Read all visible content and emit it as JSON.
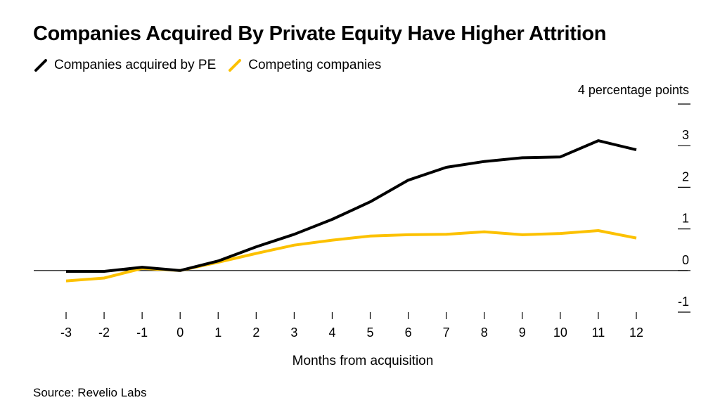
{
  "title": "Companies Acquired By Private Equity Have Higher Attrition",
  "source": "Source: Revelio Labs",
  "colors": {
    "pe": "#000000",
    "competing": "#fcc100",
    "zero_line": "#000000"
  },
  "chart_data": {
    "type": "line",
    "title": "Companies Acquired By Private Equity Have Higher Attrition",
    "xlabel": "Months from acquisition",
    "ylabel": "percentage points",
    "y_unit_label": "4 percentage points",
    "x": [
      -3,
      -2,
      -1,
      0,
      1,
      2,
      3,
      4,
      5,
      6,
      7,
      8,
      9,
      10,
      11,
      12
    ],
    "x_tick_labels": [
      "-3",
      "-2",
      "-1",
      "0",
      "1",
      "2",
      "3",
      "4",
      "5",
      "6",
      "7",
      "8",
      "9",
      "10",
      "11",
      "12"
    ],
    "y_ticks": [
      -1,
      0,
      1,
      2,
      3,
      4
    ],
    "y_tick_labels": [
      "-1",
      "0",
      "1",
      "2",
      "3",
      ""
    ],
    "ylim": [
      -1,
      4
    ],
    "xlim": [
      -3.3,
      12.2
    ],
    "series": [
      {
        "name": "Companies acquired by PE",
        "color": "#000000",
        "values": [
          -0.02,
          -0.02,
          0.08,
          0.0,
          0.23,
          0.57,
          0.87,
          1.23,
          1.65,
          2.17,
          2.48,
          2.62,
          2.71,
          2.73,
          3.12,
          2.9
        ]
      },
      {
        "name": "Competing companies",
        "color": "#fcc100",
        "values": [
          -0.25,
          -0.18,
          0.05,
          0.0,
          0.2,
          0.41,
          0.61,
          0.73,
          0.83,
          0.86,
          0.87,
          0.93,
          0.86,
          0.89,
          0.96,
          0.78
        ]
      }
    ],
    "legend": [
      "Companies acquired by PE",
      "Competing companies"
    ]
  }
}
